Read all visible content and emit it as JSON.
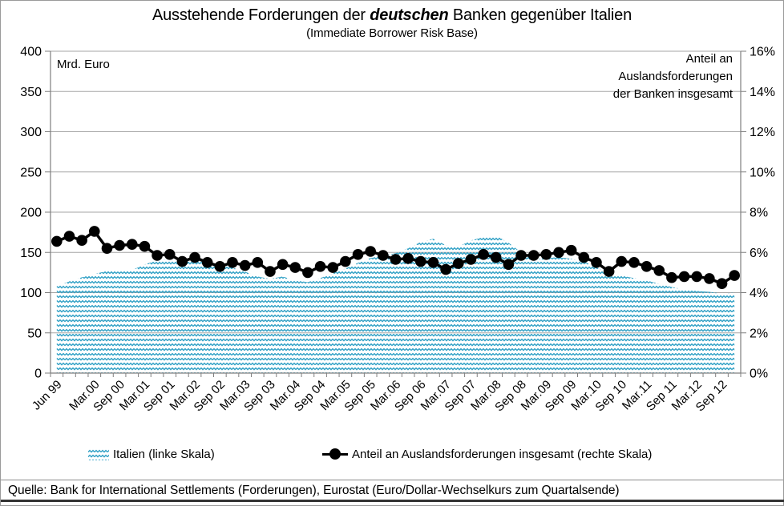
{
  "title": {
    "prefix": "Ausstehende Forderungen der ",
    "emphasis": "deutschen",
    "suffix": " Banken gegenüber Italien"
  },
  "subtitle": "(Immediate Borrower Risk Base)",
  "left_axis_unit_label": "Mrd. Euro",
  "right_axis_annotation": [
    "Anteil an",
    "Auslandsforderungen",
    "der Banken insgesamt"
  ],
  "legend": [
    {
      "label": "Italien (linke Skala)",
      "type": "area-pattern"
    },
    {
      "label": "Anteil an Auslandsforderungen insgesamt (rechte Skala)",
      "type": "line-marker"
    }
  ],
  "source": "Quelle: Bank for International Settlements (Forderungen), Eurostat (Euro/Dollar-Wechselkurs zum Quartalsende)",
  "colors": {
    "area_pattern": "#2fa0c5",
    "line": "#000000",
    "grid": "#a6a6a6",
    "axis": "#7f7f7f",
    "text": "#000000",
    "background": "#ffffff"
  },
  "chart_data": {
    "type": "combo",
    "title": "Ausstehende Forderungen der deutschen Banken gegenüber Italien",
    "subtitle": "(Immediate Borrower Risk Base)",
    "grid": true,
    "legend_position": "bottom",
    "x": [
      "Jun 99",
      "Sep 99",
      "Dec 99",
      "Mar 00",
      "Jun 00",
      "Sep 00",
      "Dec 00",
      "Mar 01",
      "Jun 01",
      "Sep 01",
      "Dec 01",
      "Mar 02",
      "Jun 02",
      "Sep 02",
      "Dec 02",
      "Mar 03",
      "Jun 03",
      "Sep 03",
      "Dec 03",
      "Mar 04",
      "Jun 04",
      "Sep 04",
      "Dec 04",
      "Mar 05",
      "Jun 05",
      "Sep 05",
      "Dec 05",
      "Mar 06",
      "Jun 06",
      "Sep 06",
      "Dec 06",
      "Mar 07",
      "Jun 07",
      "Sep 07",
      "Dec 07",
      "Mar 08",
      "Jun 08",
      "Sep 08",
      "Dec 08",
      "Mar 09",
      "Jun 09",
      "Sep 09",
      "Dec 09",
      "Mar 10",
      "Jun 10",
      "Sep 10",
      "Dec 10",
      "Mar 11",
      "Jun 11",
      "Sep 11",
      "Dec 11",
      "Mar 12",
      "Jun 12",
      "Sep 12",
      "Dec 12"
    ],
    "x_tick_labels_shown": [
      "Jun 99",
      "Mar.00",
      "Sep 00",
      "Mar.01",
      "Sep 01",
      "Mar.02",
      "Sep 02",
      "Mar.03",
      "Sep 03",
      "Mar.04",
      "Sep 04",
      "Mar.05",
      "Sep 05",
      "Mar.06",
      "Sep 06",
      "Mar.07",
      "Sep 07",
      "Mar.08",
      "Sep 08",
      "Mar.09",
      "Sep 09",
      "Mar.10",
      "Sep 10",
      "Mar.11",
      "Sep 11",
      "Mar.12",
      "Sep 12"
    ],
    "left_axis": {
      "title": "Mrd. Euro",
      "min": 0,
      "max": 400,
      "step": 50,
      "tick_labels": [
        "0",
        "50",
        "100",
        "150",
        "200",
        "250",
        "300",
        "350",
        "400"
      ]
    },
    "right_axis": {
      "title": "Anteil an Auslandsforderungen der Banken insgesamt",
      "min": 0,
      "max": 16,
      "step": 2,
      "tick_labels": [
        "0%",
        "2%",
        "4%",
        "6%",
        "8%",
        "10%",
        "12%",
        "14%",
        "16%"
      ]
    },
    "series": [
      {
        "name": "Italien (linke Skala)",
        "type": "area",
        "axis": "left",
        "values": [
          108,
          114,
          119,
          123,
          127,
          126,
          128,
          135,
          140,
          142,
          140,
          141,
          137,
          134,
          131,
          126,
          120,
          117,
          120,
          115,
          113,
          118,
          124,
          130,
          137,
          143,
          146,
          149,
          155,
          163,
          167,
          159,
          157,
          165,
          169,
          171,
          162,
          150,
          141,
          143,
          144,
          142,
          139,
          131,
          126,
          121,
          118,
          115,
          111,
          107,
          104,
          102,
          101,
          99,
          100
        ]
      },
      {
        "name": "Anteil an Auslandsforderungen insgesamt (rechte Skala)",
        "type": "line",
        "axis": "right",
        "values": [
          6.55,
          6.8,
          6.6,
          7.05,
          6.2,
          6.35,
          6.4,
          6.3,
          5.85,
          5.9,
          5.55,
          5.75,
          5.5,
          5.3,
          5.5,
          5.35,
          5.5,
          5.05,
          5.4,
          5.25,
          5.0,
          5.3,
          5.25,
          5.55,
          5.9,
          6.05,
          5.85,
          5.65,
          5.7,
          5.55,
          5.5,
          5.15,
          5.45,
          5.65,
          5.9,
          5.75,
          5.4,
          5.85,
          5.85,
          5.9,
          6.0,
          6.1,
          5.75,
          5.5,
          5.05,
          5.55,
          5.5,
          5.3,
          5.1,
          4.75,
          4.8,
          4.8,
          4.7,
          4.45,
          4.85
        ]
      }
    ]
  }
}
